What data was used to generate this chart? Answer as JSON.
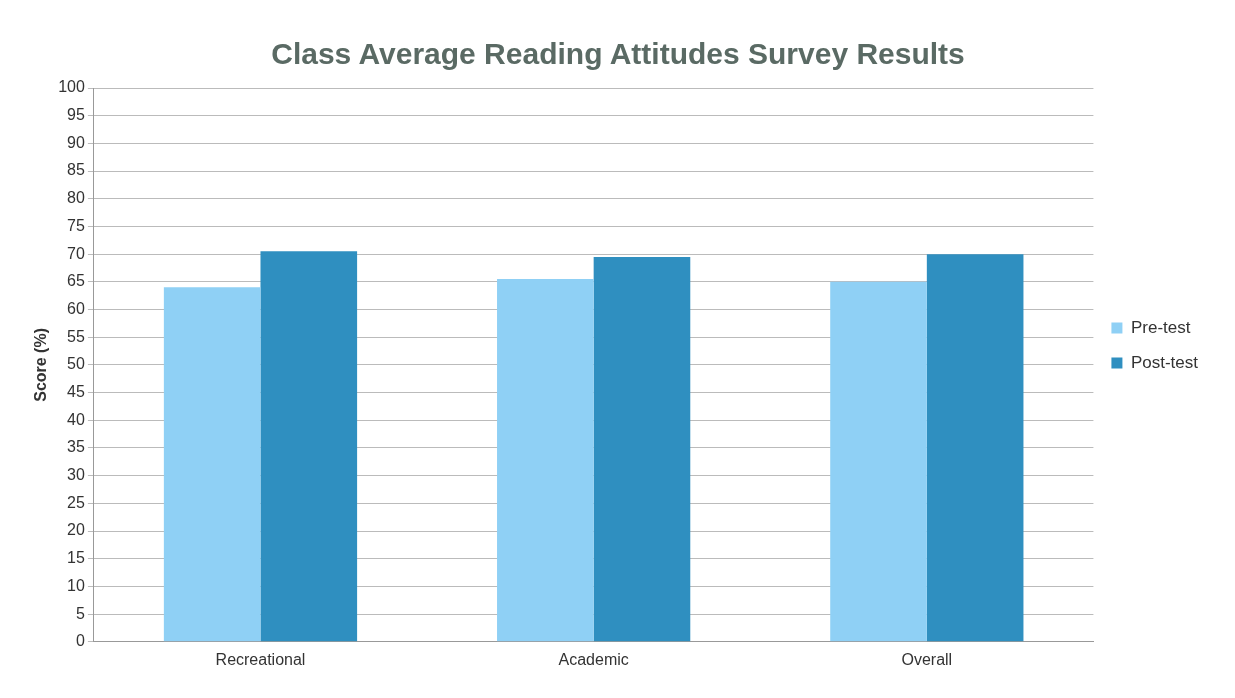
{
  "chart_data": {
    "type": "bar",
    "title": "Class Average Reading Attitudes Survey Results",
    "ylabel": "Score (%)",
    "categories": [
      "Recreational",
      "Academic",
      "Overall"
    ],
    "series": [
      {
        "name": "Pre-test",
        "color": "#8fd0f5",
        "values": [
          64,
          65.5,
          65
        ]
      },
      {
        "name": "Post-test",
        "color": "#2f8fc0",
        "values": [
          70.5,
          69.5,
          70
        ]
      }
    ],
    "ylim": [
      0,
      100
    ],
    "yticks": [
      0,
      5,
      10,
      15,
      20,
      25,
      30,
      35,
      40,
      45,
      50,
      55,
      60,
      65,
      70,
      75,
      80,
      85,
      90,
      95,
      100
    ],
    "grid": "y",
    "legend": "right"
  }
}
